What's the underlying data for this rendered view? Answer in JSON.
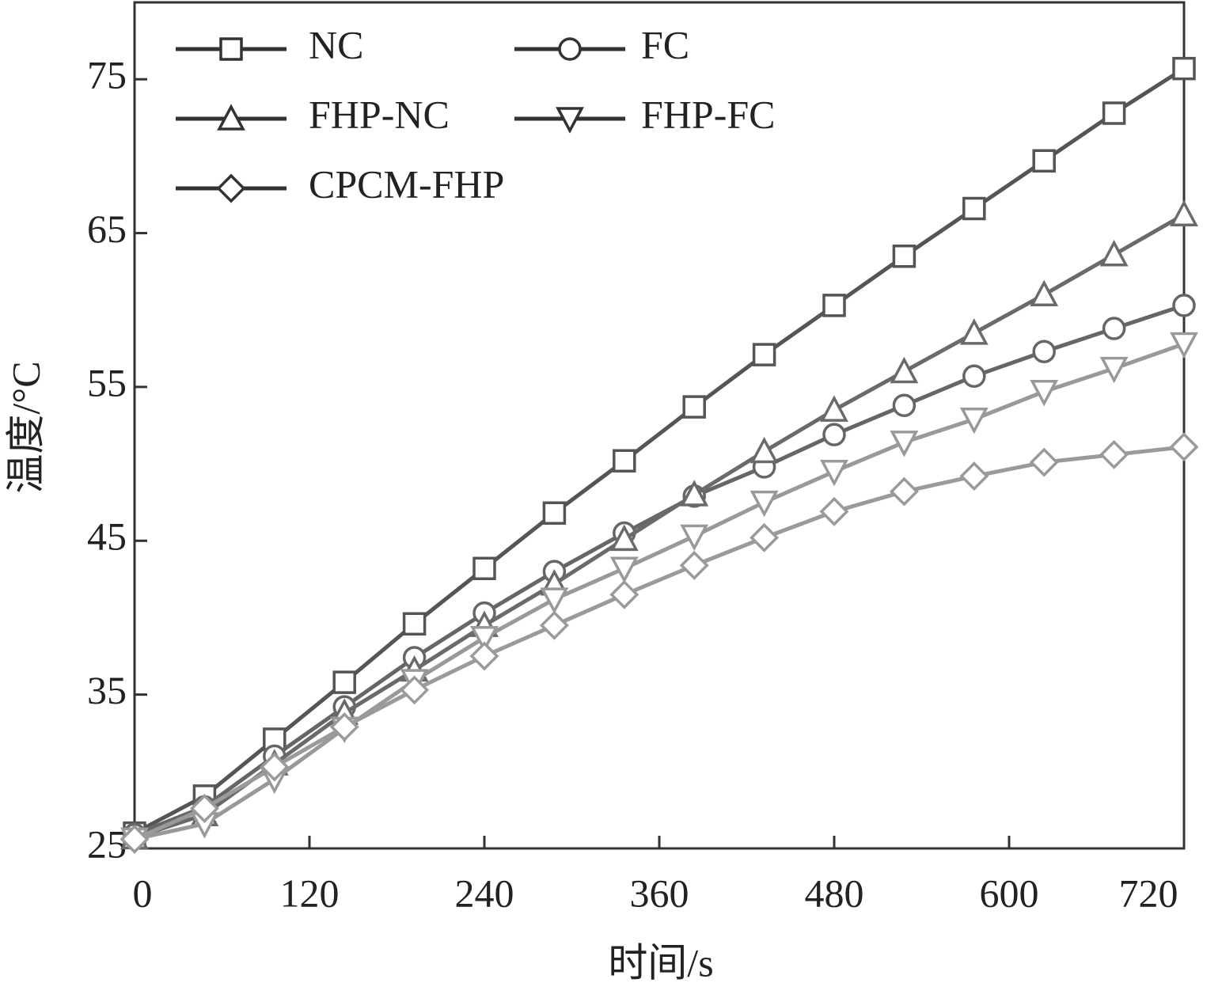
{
  "chart_data": {
    "type": "line",
    "x_label": "时间/s",
    "y_label": "温度/°C",
    "x": [
      0,
      48,
      96,
      144,
      192,
      240,
      288,
      336,
      384,
      432,
      480,
      528,
      576,
      624,
      672,
      720
    ],
    "series": [
      {
        "name": "NC",
        "color": "#555555",
        "marker": "square",
        "values": [
          26.0,
          28.4,
          32.1,
          35.8,
          39.6,
          43.2,
          46.8,
          50.2,
          53.7,
          57.1,
          60.3,
          63.5,
          66.6,
          69.7,
          72.8,
          75.7
        ]
      },
      {
        "name": "FC",
        "color": "#666666",
        "marker": "circle",
        "values": [
          25.9,
          27.7,
          31.0,
          34.2,
          37.4,
          40.3,
          43.0,
          45.5,
          47.9,
          49.8,
          51.9,
          53.8,
          55.7,
          57.3,
          58.8,
          60.3
        ]
      },
      {
        "name": "FHP-NC",
        "color": "#6a6a6a",
        "marker": "triangle-up",
        "values": [
          25.7,
          27.2,
          30.5,
          33.8,
          36.6,
          39.5,
          42.2,
          45.1,
          48.0,
          50.8,
          53.5,
          56.0,
          58.5,
          61.0,
          63.6,
          66.2
        ]
      },
      {
        "name": "FHP-FC",
        "color": "#999999",
        "marker": "triangle-down",
        "values": [
          25.6,
          26.6,
          29.5,
          32.8,
          35.9,
          38.7,
          41.2,
          43.2,
          45.3,
          47.5,
          49.5,
          51.4,
          52.9,
          54.7,
          56.2,
          57.8
        ]
      },
      {
        "name": "CPCM-FHP",
        "color": "#9a9a9a",
        "marker": "diamond",
        "values": [
          25.6,
          27.6,
          30.3,
          32.9,
          35.3,
          37.5,
          39.5,
          41.5,
          43.4,
          45.2,
          46.9,
          48.2,
          49.2,
          50.1,
          50.6,
          51.1
        ]
      }
    ],
    "xlim": [
      0,
      720
    ],
    "ylim": [
      25,
      80
    ],
    "xticks": [
      0,
      120,
      240,
      360,
      480,
      600,
      720
    ],
    "yticks": [
      25,
      35,
      45,
      55,
      65,
      75
    ]
  }
}
